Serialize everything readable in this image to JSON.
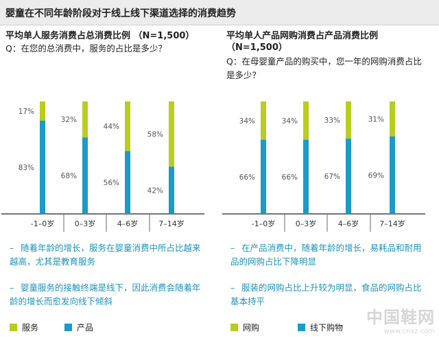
{
  "page_title": "婴童在不同年龄阶段对于线上线下渠道选择的消费趋势",
  "colors": {
    "bottom": "#1a9bc8",
    "top": "#b8cd1e",
    "note": "#1d93b8"
  },
  "left": {
    "title": "平均单人服务消费占总消费比例 （N=1,500）",
    "question": "Q：在您的总消费中，服务的占比是多少？",
    "notes": [
      {
        "dash": "–",
        "text": "随着年龄的增长，服务在婴童消费中所占比越来越高，尤其是教育服务"
      },
      {
        "dash": "–",
        "text": "婴童服务的接触终端是线下，因此消费会随着年龄的增长而愈发向线下倾斜"
      }
    ],
    "legend": [
      {
        "label": "服务",
        "color": "#b8cd1e"
      },
      {
        "label": "产品",
        "color": "#1a9bc8"
      }
    ]
  },
  "right": {
    "title": "平均单人产品网购消费占产品消费比例（N=1,500）",
    "question": "Q：在母婴童产品的购买中，您一年的网购消费占比是多少？",
    "notes": [
      {
        "dash": "–",
        "text": "在产品消费中，随着年龄的增长，易耗品和耐用品的网购占比下降明显"
      },
      {
        "dash": "–",
        "text": "服装的网购占比上升较为明显，食品的网购占比基本持平"
      }
    ],
    "legend": [
      {
        "label": "网购",
        "color": "#b8cd1e"
      },
      {
        "label": "线下购物",
        "color": "#1a9bc8"
      }
    ]
  },
  "chart_data": [
    {
      "type": "bar",
      "stacked": true,
      "categories": [
        "-1–0岁",
        "0–3岁",
        "4–6岁",
        "7–14岁"
      ],
      "series": [
        {
          "name": "产品",
          "values": [
            83,
            68,
            56,
            42
          ]
        },
        {
          "name": "服务",
          "values": [
            17,
            32,
            44,
            58
          ]
        }
      ],
      "value_labels": [
        [
          "83%",
          "68%",
          "56%",
          "42%"
        ],
        [
          "17%",
          "32%",
          "44%",
          "58%"
        ]
      ],
      "ylim": [
        0,
        100
      ]
    },
    {
      "type": "bar",
      "stacked": true,
      "categories": [
        "-1–0岁",
        "0–3岁",
        "4–6岁",
        "7–14岁"
      ],
      "series": [
        {
          "name": "线下购物",
          "values": [
            66,
            66,
            67,
            69
          ]
        },
        {
          "name": "网购",
          "values": [
            34,
            34,
            33,
            31
          ]
        }
      ],
      "value_labels": [
        [
          "66%",
          "66%",
          "67%",
          "69%"
        ],
        [
          "34%",
          "34%",
          "33%",
          "31%"
        ]
      ],
      "ylim": [
        0,
        100
      ]
    }
  ],
  "watermark": {
    "name": "中国鞋网",
    "url": "www.cnxz.com"
  }
}
